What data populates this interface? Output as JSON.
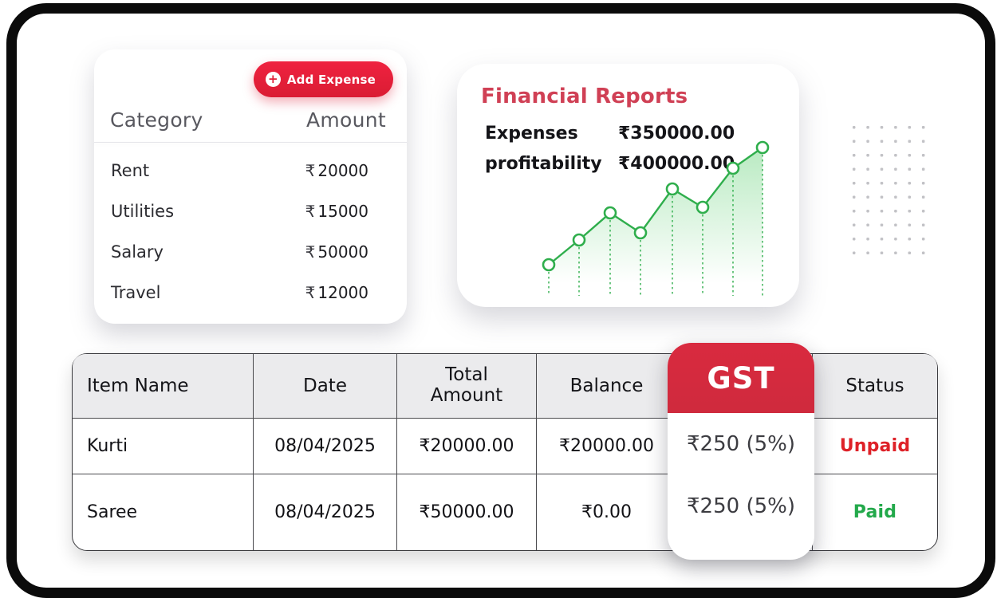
{
  "expense_card": {
    "add_expense_label": "Add Expense",
    "category_header": "Category",
    "amount_header": "Amount",
    "rows": [
      {
        "category": "Rent",
        "rupee": "₹",
        "amount": "20000"
      },
      {
        "category": "Utilities",
        "rupee": "₹",
        "amount": "15000"
      },
      {
        "category": "Salary",
        "rupee": "₹",
        "amount": "50000"
      },
      {
        "category": "Travel",
        "rupee": "₹",
        "amount": "12000"
      }
    ]
  },
  "financial_card": {
    "title": "Financial Reports",
    "metrics": [
      {
        "label": "Expenses",
        "value": "₹350000.00"
      },
      {
        "label": "profitability",
        "value": "₹400000.00"
      }
    ],
    "chart_data": {
      "type": "line",
      "title": "",
      "xlabel": "",
      "ylabel": "",
      "axes_visible": false,
      "x": [
        15,
        53,
        92,
        130,
        170,
        208,
        246,
        283
      ],
      "values": [
        38,
        69,
        103,
        78,
        133,
        110,
        159,
        185
      ],
      "baseline": 195,
      "marker": "open-circle",
      "line_color": "#2fae4c",
      "fill": "green-gradient-fading-down",
      "droplines": "dotted-vertical"
    }
  },
  "dot_grid": {
    "rows": 10,
    "cols": 6,
    "color": "#c2c2c6"
  },
  "invoice_table": {
    "headers": [
      "Item Name",
      "Date",
      "Total Amount",
      "Balance",
      "GST",
      "Status"
    ],
    "gst_header": "GST",
    "rows": [
      {
        "item": "Kurti",
        "date": "08/04/2025",
        "total": "₹20000.00",
        "balance": "₹20000.00",
        "gst": "₹250 (5%)",
        "status": "Unpaid"
      },
      {
        "item": "Saree",
        "date": "08/04/2025",
        "total": "₹50000.00",
        "balance": "₹0.00",
        "gst": "₹250 (5%)",
        "status": "Paid"
      }
    ]
  },
  "colors": {
    "accent_red": "#de2438",
    "title_red": "#d04055",
    "gst_red": "#d5293d",
    "unpaid_red": "#de2128",
    "paid_green": "#23a94b",
    "chart_green": "#2fae4c",
    "table_header_gray": "#ebebed",
    "frame_black": "#0b0b0b"
  }
}
